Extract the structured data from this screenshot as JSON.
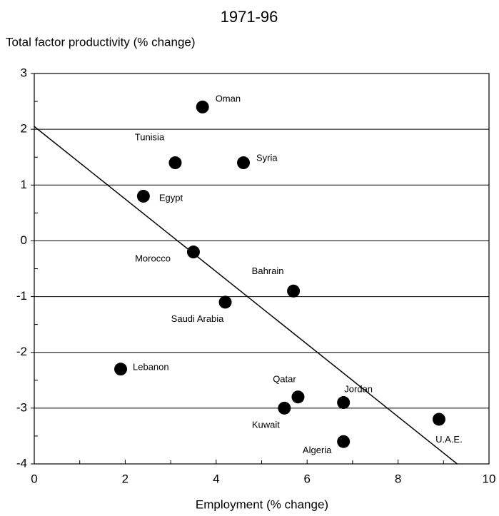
{
  "chart_data": {
    "type": "scatter",
    "title": "1971-96",
    "y_label": "Total factor productivity (% change)",
    "x_label": "Employment (% change)",
    "labels": [
      "Oman",
      "Tunisia",
      "Syria",
      "Egypt",
      "Morocco",
      "Bahrain",
      "Saudi Arabia",
      "Lebanon",
      "Qatar",
      "Jordan",
      "Kuwait",
      "Algeria",
      "U.A.E."
    ],
    "x": [
      3.7,
      3.1,
      4.6,
      2.4,
      3.5,
      5.7,
      4.2,
      1.9,
      5.8,
      6.8,
      5.5,
      6.8,
      8.9
    ],
    "values": [
      2.4,
      1.4,
      1.4,
      0.8,
      -0.2,
      -0.9,
      -1.1,
      -2.3,
      -2.8,
      -2.9,
      -3.0,
      -3.6,
      -3.2
    ],
    "color": "#000000",
    "trend_line": {
      "x": [
        0,
        9.3
      ],
      "y": [
        2.05,
        -4
      ]
    },
    "xlim": [
      0,
      10
    ],
    "ylim": [
      -4,
      3
    ],
    "xticks": [
      0,
      2,
      4,
      6,
      8,
      10
    ],
    "yticks": [
      -4,
      -3,
      -2,
      -1,
      0,
      1,
      2,
      3
    ],
    "xticks_minor": [
      1,
      3,
      5,
      7,
      9
    ],
    "yticks_minor": [
      -3.5,
      -2.5,
      -1.5,
      -0.5,
      0.5,
      1.5,
      2.5
    ],
    "grid": true
  }
}
